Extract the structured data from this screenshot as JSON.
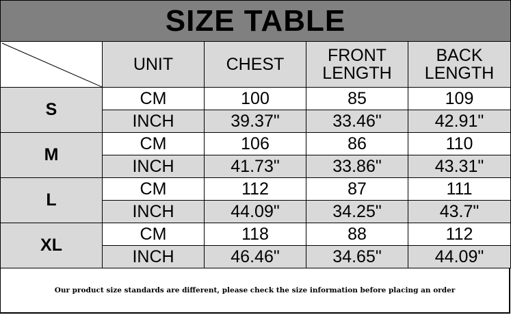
{
  "title": "SIZE TABLE",
  "headers": [
    "UNIT",
    "CHEST",
    "FRONT LENGTH",
    "BACK LENGTH"
  ],
  "sizes": [
    {
      "size": "S",
      "rows": [
        {
          "unit": "CM",
          "chest": "100",
          "front": "85",
          "back": "109"
        },
        {
          "unit": "INCH",
          "chest": "39.37\"",
          "front": "33.46\"",
          "back": "42.91\""
        }
      ]
    },
    {
      "size": "M",
      "rows": [
        {
          "unit": "CM",
          "chest": "106",
          "front": "86",
          "back": "110"
        },
        {
          "unit": "INCH",
          "chest": "41.73\"",
          "front": "33.86\"",
          "back": "43.31\""
        }
      ]
    },
    {
      "size": "L",
      "rows": [
        {
          "unit": "CM",
          "chest": "112",
          "front": "87",
          "back": "111"
        },
        {
          "unit": "INCH",
          "chest": "44.09\"",
          "front": "34.25\"",
          "back": "43.7\""
        }
      ]
    },
    {
      "size": "XL",
      "rows": [
        {
          "unit": "CM",
          "chest": "118",
          "front": "88",
          "back": "112"
        },
        {
          "unit": "INCH",
          "chest": "46.46\"",
          "front": "34.65\"",
          "back": "44.09\""
        }
      ]
    }
  ],
  "footer": "Our product size standards are different, please check the size information before placing an order",
  "colors": {
    "title_bg": "#808080",
    "cell_gray": "#d9d9d9"
  }
}
